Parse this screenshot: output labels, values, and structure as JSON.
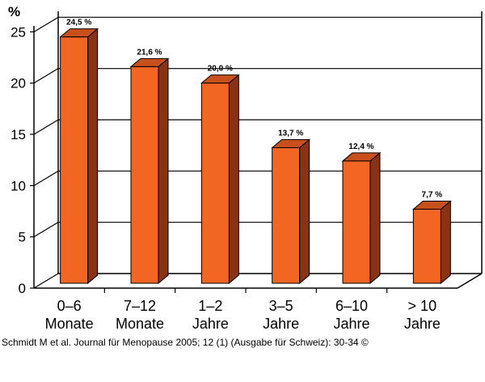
{
  "chart_data": {
    "type": "bar",
    "unit_label": "%",
    "categories": [
      [
        "0–6",
        "Monate"
      ],
      [
        "7–12",
        "Monate"
      ],
      [
        "1–2",
        "Jahre"
      ],
      [
        "3–5",
        "Jahre"
      ],
      [
        "6–10",
        "Jahre"
      ],
      [
        "> 10",
        "Jahre"
      ]
    ],
    "values": [
      24.5,
      21.6,
      20.0,
      13.7,
      12.4,
      7.7
    ],
    "data_labels": [
      "24,5 %",
      "21,6 %",
      "20,0 %",
      "13,7 %",
      "12,4 %",
      "7,7 %"
    ],
    "yticks": [
      "0",
      "5",
      "10",
      "15",
      "20",
      "25"
    ],
    "ylim": [
      0,
      27
    ],
    "grid": true,
    "style": "3d",
    "colors": {
      "bar_front": "#f26522",
      "bar_side": "#8a3214",
      "bar_top": "#c8501c",
      "outline": "#000000"
    }
  },
  "source": "Schmidt M et al. Journal für Menopause 2005; 12 (1) (Ausgabe für Schweiz): 30-34 ©"
}
